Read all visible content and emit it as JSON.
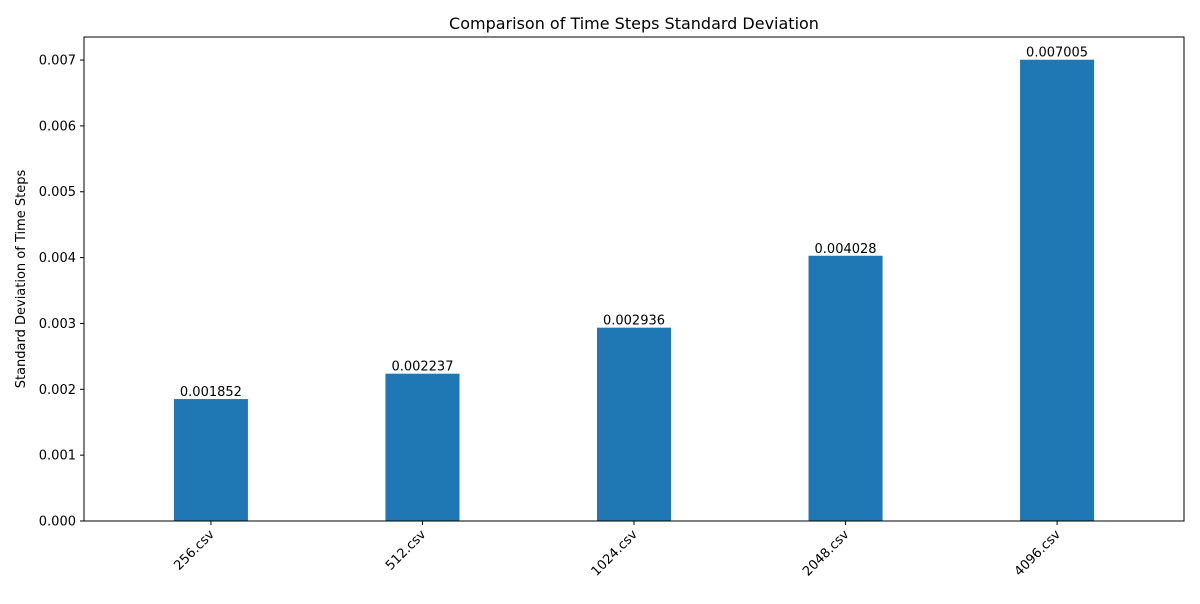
{
  "chart_data": {
    "type": "bar",
    "title": "Comparison of Time Steps Standard Deviation",
    "xlabel": "",
    "ylabel": "Standard Deviation of Time Steps",
    "categories": [
      "256.csv",
      "512.csv",
      "1024.csv",
      "2048.csv",
      "4096.csv"
    ],
    "values": [
      0.001852,
      0.002237,
      0.002936,
      0.004028,
      0.007005
    ],
    "value_labels": [
      "0.001852",
      "0.002237",
      "0.002936",
      "0.004028",
      "0.007005"
    ],
    "ylim": [
      0,
      0.00735
    ],
    "yticks": [
      0.0,
      0.001,
      0.002,
      0.003,
      0.004,
      0.005,
      0.006,
      0.007
    ],
    "ytick_labels": [
      "0.000",
      "0.001",
      "0.002",
      "0.003",
      "0.004",
      "0.005",
      "0.006",
      "0.007"
    ],
    "bar_color": "#1f77b4",
    "grid": false,
    "legend": false
  }
}
